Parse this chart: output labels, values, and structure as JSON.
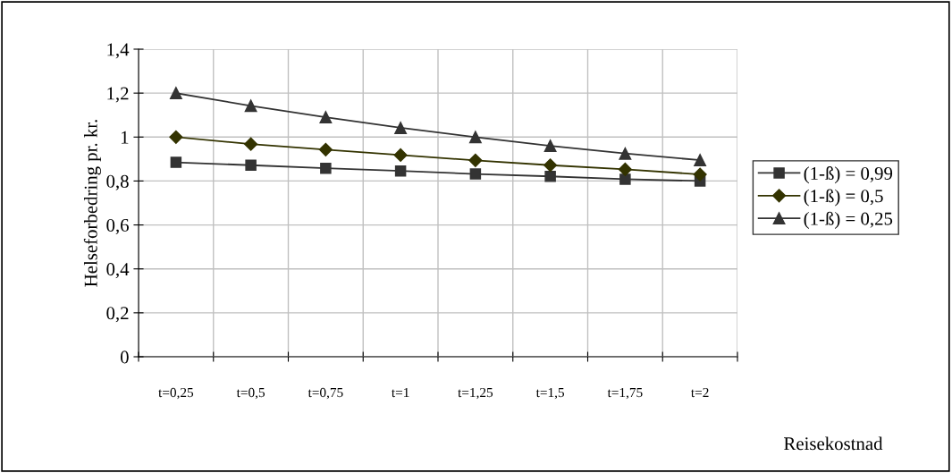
{
  "chart_data": {
    "type": "line",
    "xlabel": "Reisekostnad",
    "ylabel": "Helseforbedring pr. kr.",
    "categories": [
      "t=0,25",
      "t=0,5",
      "t=0,75",
      "t=1",
      "t=1,25",
      "t=1,5",
      "t=1,75",
      "t=2"
    ],
    "series": [
      {
        "name": "(1-ß) = 0,99",
        "color": "#333333",
        "marker": "square",
        "values": [
          0.885,
          0.872,
          0.858,
          0.846,
          0.832,
          0.821,
          0.808,
          0.8
        ]
      },
      {
        "name": "(1-ß) = 0,5",
        "color": "#333300",
        "marker": "diamond",
        "values": [
          1.0,
          0.968,
          0.943,
          0.918,
          0.894,
          0.872,
          0.853,
          0.83
        ]
      },
      {
        "name": "(1-ß) = 0,25",
        "color": "#333333",
        "marker": "triangle",
        "values": [
          1.2,
          1.142,
          1.09,
          1.042,
          1.0,
          0.96,
          0.925,
          0.895
        ]
      }
    ],
    "ylim": [
      0,
      1.4
    ],
    "yticks": [
      {
        "value": 0,
        "label": "0"
      },
      {
        "value": 0.2,
        "label": "0,2"
      },
      {
        "value": 0.4,
        "label": "0,4"
      },
      {
        "value": 0.6,
        "label": "0,6"
      },
      {
        "value": 0.8,
        "label": "0,8"
      },
      {
        "value": 1,
        "label": "1"
      },
      {
        "value": 1.2,
        "label": "1,2"
      },
      {
        "value": 1.4,
        "label": "1,4"
      }
    ],
    "grid": true,
    "legend": "right",
    "line_style": "solid"
  }
}
